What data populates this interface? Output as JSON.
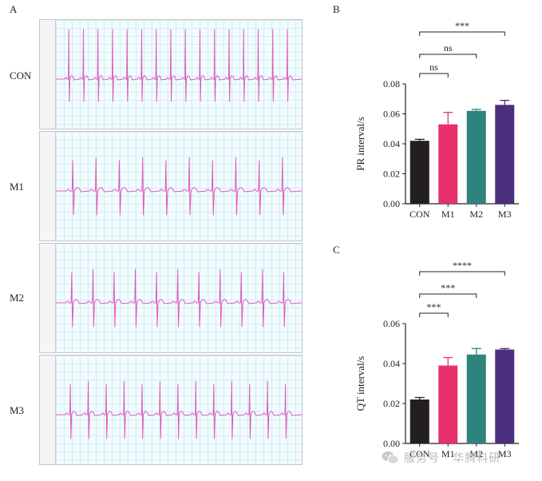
{
  "panel_labels": {
    "a": "A",
    "b": "B",
    "c": "C"
  },
  "ecg": {
    "traces": [
      {
        "label": "CON",
        "beats": 16
      },
      {
        "label": "M1",
        "beats": 10
      },
      {
        "label": "M2",
        "beats": 11
      },
      {
        "label": "M3",
        "beats": 13
      }
    ],
    "trace_color": "#e05ab8"
  },
  "chart_data": [
    {
      "type": "bar",
      "panel": "B",
      "categories": [
        "CON",
        "M1",
        "M2",
        "M3"
      ],
      "values": [
        0.042,
        0.053,
        0.062,
        0.066
      ],
      "errors": [
        0.001,
        0.008,
        0.001,
        0.003
      ],
      "colors": [
        "#231f20",
        "#e8316b",
        "#2e837d",
        "#4b2e7e"
      ],
      "xlabel": "",
      "ylabel": "PR interval/s",
      "ylim": [
        0,
        0.08
      ],
      "yticks": [
        "0.00",
        "0.02",
        "0.04",
        "0.06",
        "0.08"
      ],
      "grid": false,
      "comparisons": [
        {
          "from": "CON",
          "to": "M1",
          "label": "ns"
        },
        {
          "from": "CON",
          "to": "M2",
          "label": "ns"
        },
        {
          "from": "CON",
          "to": "M3",
          "label": "***"
        }
      ]
    },
    {
      "type": "bar",
      "panel": "C",
      "categories": [
        "CON",
        "M1",
        "M2",
        "M3"
      ],
      "values": [
        0.022,
        0.039,
        0.0445,
        0.047
      ],
      "errors": [
        0.001,
        0.004,
        0.003,
        0.0005
      ],
      "colors": [
        "#231f20",
        "#e8316b",
        "#2e837d",
        "#4b2e7e"
      ],
      "xlabel": "",
      "ylabel": "QT interval/s",
      "ylim": [
        0,
        0.06
      ],
      "yticks": [
        "0.00",
        "0.02",
        "0.04",
        "0.06"
      ],
      "grid": false,
      "comparisons": [
        {
          "from": "CON",
          "to": "M1",
          "label": "***"
        },
        {
          "from": "CON",
          "to": "M2",
          "label": "***"
        },
        {
          "from": "CON",
          "to": "M3",
          "label": "****"
        }
      ]
    }
  ],
  "watermark": {
    "text": "服务号 · 华腾科研",
    "icon": "wechat-icon"
  }
}
